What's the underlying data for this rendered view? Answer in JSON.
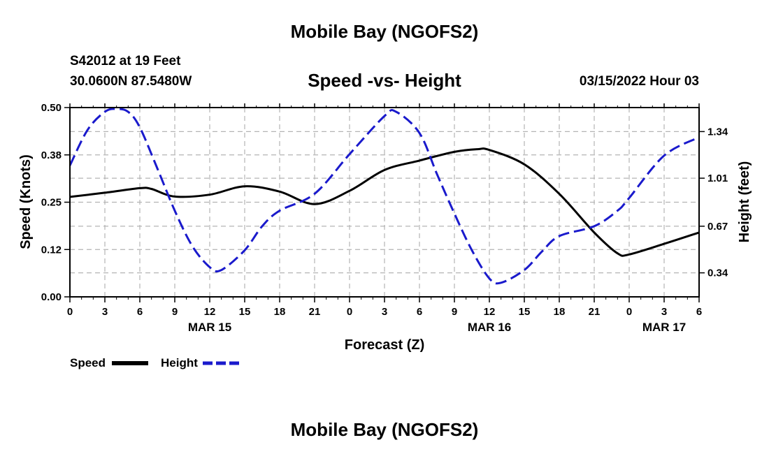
{
  "header": {
    "title": "Mobile Bay (NGOFS2)",
    "station": "S42012 at 19 Feet",
    "coords": "30.0600N  87.5480W",
    "subtitle": "Speed -vs- Height",
    "datetime": "03/15/2022 Hour 03"
  },
  "footer": {
    "title": "Mobile Bay (NGOFS2)"
  },
  "chart_data": {
    "type": "line",
    "xlabel": "Forecast (Z)",
    "ylabel_left": "Speed (Knots)",
    "ylabel_right": "Height (feet)",
    "xlim": [
      0,
      54
    ],
    "ylim_left": [
      0,
      0.5
    ],
    "ylim_right": [
      0.17,
      1.51
    ],
    "left_ticks": [
      "0.00",
      "0.12",
      "0.25",
      "0.38",
      "0.50"
    ],
    "left_tick_values": [
      0,
      0.125,
      0.25,
      0.375,
      0.5
    ],
    "right_ticks": [
      "0.34",
      "0.67",
      "1.01",
      "1.34"
    ],
    "right_tick_values": [
      0.34,
      0.67,
      1.01,
      1.34
    ],
    "x_tick_positions": [
      0,
      3,
      6,
      9,
      12,
      15,
      18,
      21,
      24,
      27,
      30,
      33,
      36,
      39,
      42,
      45,
      48,
      51,
      54
    ],
    "x_tick_labels": [
      "0",
      "3",
      "6",
      "9",
      "12",
      "15",
      "18",
      "21",
      "0",
      "3",
      "6",
      "9",
      "12",
      "15",
      "18",
      "21",
      "0",
      "3",
      "6"
    ],
    "date_labels": [
      {
        "x": 12,
        "label": "MAR 15"
      },
      {
        "x": 36,
        "label": "MAR 16"
      },
      {
        "x": 51,
        "label": "MAR 17"
      }
    ],
    "grid": true,
    "legend_position": "bottom-left",
    "series": [
      {
        "name": "Speed",
        "axis": "left",
        "color": "#000000",
        "style": "solid",
        "x": [
          0,
          3,
          6,
          7,
          9,
          12,
          15,
          18,
          21,
          24,
          27,
          30,
          33,
          35,
          36,
          39,
          42,
          45,
          47,
          48,
          51,
          54
        ],
        "y": [
          0.264,
          0.275,
          0.287,
          0.285,
          0.265,
          0.27,
          0.292,
          0.278,
          0.245,
          0.28,
          0.335,
          0.36,
          0.383,
          0.39,
          0.388,
          0.35,
          0.272,
          0.17,
          0.115,
          0.112,
          0.14,
          0.17
        ]
      },
      {
        "name": "Height",
        "axis": "right",
        "color": "#1a1acc",
        "style": "dashed",
        "x": [
          0,
          1.5,
          3,
          4,
          5,
          6,
          7.5,
          9,
          10.5,
          12,
          13,
          15,
          16.5,
          18,
          21,
          24,
          27,
          28,
          30,
          31.5,
          33,
          34.5,
          36,
          37,
          39,
          40.5,
          42,
          45,
          47,
          48,
          51,
          54
        ],
        "y": [
          1.1,
          1.35,
          1.48,
          1.5,
          1.48,
          1.37,
          1.08,
          0.78,
          0.53,
          0.38,
          0.36,
          0.5,
          0.67,
          0.78,
          0.9,
          1.18,
          1.45,
          1.48,
          1.33,
          1.04,
          0.76,
          0.5,
          0.3,
          0.27,
          0.36,
          0.49,
          0.6,
          0.67,
          0.78,
          0.87,
          1.17,
          1.3
        ]
      }
    ]
  },
  "legend": {
    "speed_label": "Speed",
    "height_label": "Height"
  }
}
